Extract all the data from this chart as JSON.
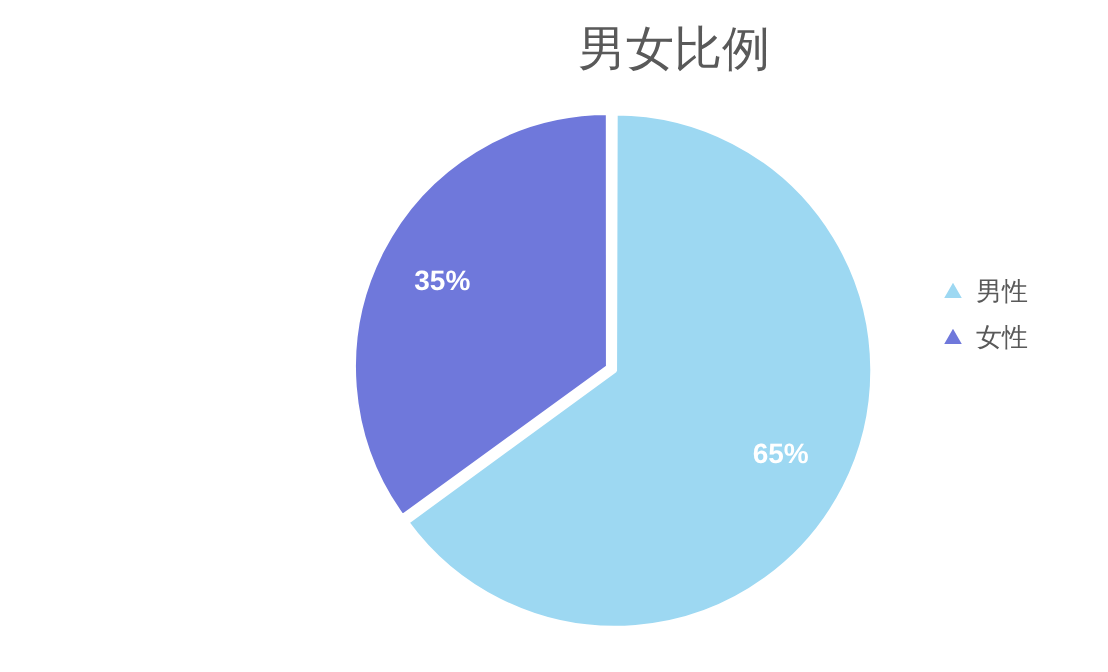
{
  "chart_data": {
    "type": "pie",
    "title": "男女比例",
    "categories": [
      "男性",
      "女性"
    ],
    "values": [
      65,
      35
    ],
    "colors": [
      "#9dd8f2",
      "#6f78db"
    ],
    "value_labels": [
      "65%",
      "35%"
    ],
    "legend": "right"
  }
}
